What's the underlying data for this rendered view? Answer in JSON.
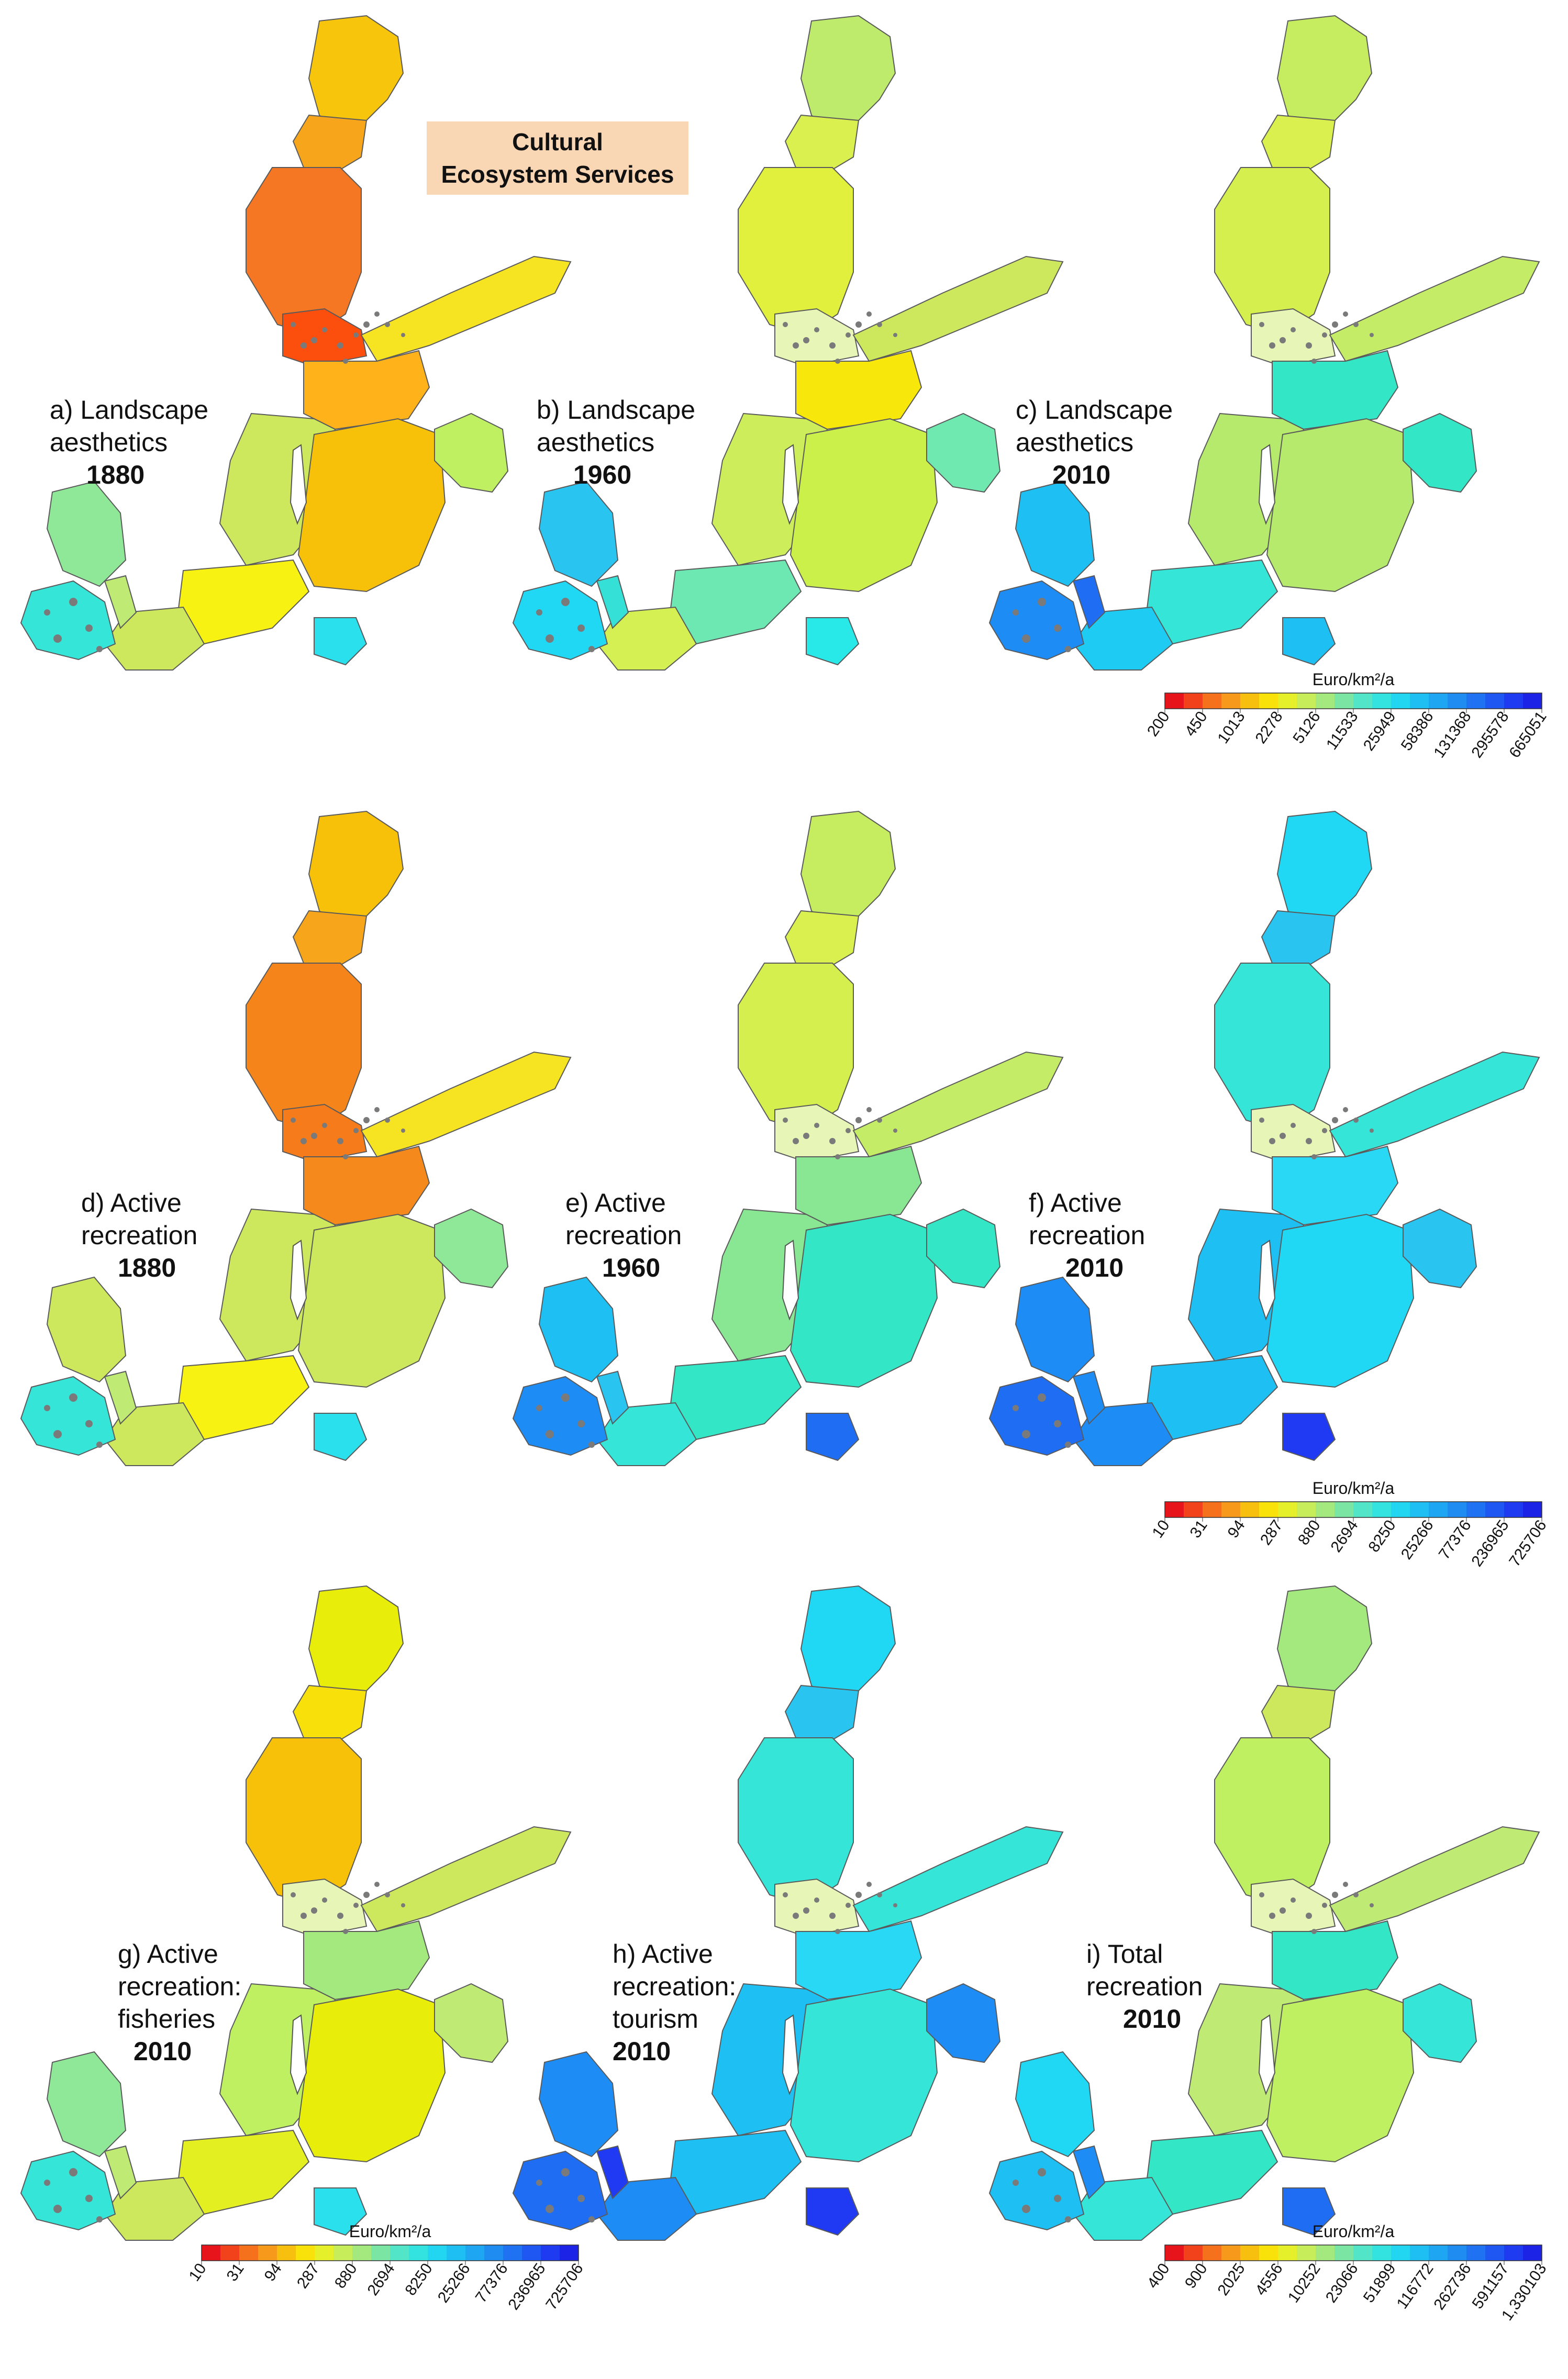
{
  "title": [
    "Cultural",
    "Ecosystem Services"
  ],
  "panels": [
    {
      "id": "a",
      "label": "a) Landscape\naesthetics",
      "year": "1880",
      "scale": "landscape",
      "colors": {
        "n1": "#f7c60c",
        "n2": "#f7a51b",
        "n3": "#f57723",
        "n4": "#f6e321",
        "n5": "#ffb21a",
        "n6": "#fc4e0c",
        "n7": "#f7c10a",
        "n8": "#f8f213",
        "n9": "#cde85c",
        "n10": "#35e6d8",
        "n11": "#8fe897",
        "n12": "#bfea74",
        "n13": "#bff062",
        "n14": "#cde85c",
        "n15": "#29e0ec"
      }
    },
    {
      "id": "b",
      "label": "b) Landscape\naesthetics",
      "year": "1960",
      "scale": "landscape",
      "colors": {
        "n1": "#bfeb6c",
        "n2": "#daf04e",
        "n3": "#e0f03d",
        "n4": "#cde85c",
        "n5": "#f8e70a",
        "n6": "#e7f5b7",
        "n7": "#cbf04a",
        "n8": "#6de8b3",
        "n9": "#cdee5a",
        "n10": "#20d8f4",
        "n11": "#29c4f0",
        "n12": "#35e0d6",
        "n13": "#6fe9b0",
        "n14": "#d4f053",
        "n15": "#28e8e8"
      }
    },
    {
      "id": "c",
      "label": "c) Landscape\naesthetics",
      "year": "2010",
      "scale": "landscape",
      "colors": {
        "n1": "#c6ec60",
        "n2": "#daf04e",
        "n3": "#d4ef4e",
        "n4": "#c5ec66",
        "n5": "#33e6c6",
        "n6": "#e7f5b7",
        "n7": "#b6ea6c",
        "n8": "#35e6d8",
        "n9": "#b6ea6c",
        "n10": "#1e8cf5",
        "n11": "#1ebff2",
        "n12": "#1f6df2",
        "n13": "#33e6c6",
        "n14": "#1ecbf2",
        "n15": "#1ebff2"
      }
    },
    {
      "id": "d",
      "label": "d) Active\nrecreation",
      "year": "1880",
      "scale": "recreation",
      "colors": {
        "n1": "#f7c10a",
        "n2": "#f7a51b",
        "n3": "#f5851b",
        "n4": "#f6e321",
        "n5": "#f5891b",
        "n6": "#f57b1b",
        "n7": "#cde85c",
        "n8": "#f8f213",
        "n9": "#cde85c",
        "n10": "#35e6d8",
        "n11": "#cde85c",
        "n12": "#bfea74",
        "n13": "#8fe897",
        "n14": "#cde85c",
        "n15": "#29e0ec"
      }
    },
    {
      "id": "e",
      "label": "e) Active\nrecreation",
      "year": "1960",
      "scale": "recreation",
      "colors": {
        "n1": "#c6ec60",
        "n2": "#daf04e",
        "n3": "#d4ef4e",
        "n4": "#c5ec66",
        "n5": "#89e693",
        "n6": "#e7f5b7",
        "n7": "#33e6c6",
        "n8": "#33e6c6",
        "n9": "#89e693",
        "n10": "#1e8cf5",
        "n11": "#1ebff2",
        "n12": "#29c4f0",
        "n13": "#33e6c6",
        "n14": "#35e6d8",
        "n15": "#1f6df2"
      }
    },
    {
      "id": "f",
      "label": "f) Active\nrecreation",
      "year": "2010",
      "scale": "recreation",
      "colors": {
        "n1": "#20d8f4",
        "n2": "#29c4f0",
        "n3": "#35e6d8",
        "n4": "#35e6d8",
        "n5": "#29d8f4",
        "n6": "#e7f5b7",
        "n7": "#20d8f4",
        "n8": "#1ebff2",
        "n9": "#1ebff2",
        "n10": "#1f6df2",
        "n11": "#1e8cf5",
        "n12": "#1e8cf5",
        "n13": "#29c4f0",
        "n14": "#1e8cf5",
        "n15": "#1f3af2"
      }
    },
    {
      "id": "g",
      "label": "g) Active\nrecreation:\nfisheries",
      "year": "2010",
      "scale": "recreation",
      "colors": {
        "n1": "#e8ee0a",
        "n2": "#f8e10a",
        "n3": "#f7c10a",
        "n4": "#cde85c",
        "n5": "#a4e97e",
        "n6": "#e7f5b7",
        "n7": "#e8ee0a",
        "n8": "#e4ef22",
        "n9": "#bff062",
        "n10": "#35e6d8",
        "n11": "#8fe897",
        "n12": "#bfea74",
        "n13": "#bfea74",
        "n14": "#cde85c",
        "n15": "#29e0ec"
      }
    },
    {
      "id": "h",
      "label": "h) Active\nrecreation:\ntourism",
      "year": "2010",
      "scale": "recreation",
      "colors": {
        "n1": "#20d8f4",
        "n2": "#29c4f0",
        "n3": "#35e6d8",
        "n4": "#35e6d8",
        "n5": "#29d8f4",
        "n6": "#e7f5b7",
        "n7": "#35e6d8",
        "n8": "#1ebff2",
        "n9": "#1ebff2",
        "n10": "#1f6df2",
        "n11": "#1e8cf5",
        "n12": "#1f3af2",
        "n13": "#1e8cf5",
        "n14": "#1e8cf5",
        "n15": "#1f3af2"
      }
    },
    {
      "id": "i",
      "label": "i) Total\nrecreation",
      "year": "2010",
      "scale": "total",
      "colors": {
        "n1": "#a4e97e",
        "n2": "#cde85c",
        "n3": "#bff062",
        "n4": "#bfea74",
        "n5": "#33e6c6",
        "n6": "#e7f5b7",
        "n7": "#bff062",
        "n8": "#33e6c6",
        "n9": "#bfea74",
        "n10": "#1ebff2",
        "n11": "#20d8f4",
        "n12": "#1e8cf5",
        "n13": "#35e6d8",
        "n14": "#35e6d8",
        "n15": "#1f6df2"
      }
    }
  ],
  "legends": [
    {
      "id": "landscape",
      "unit": "Euro/km²/a",
      "ticks": [
        "200",
        "450",
        "1013",
        "2278",
        "5126",
        "11533",
        "25949",
        "58386",
        "131368",
        "295578",
        "665051"
      ]
    },
    {
      "id": "recreation-top",
      "unit": "Euro/km²/a",
      "ticks": [
        "10",
        "31",
        "94",
        "287",
        "880",
        "2694",
        "8250",
        "25266",
        "77376",
        "236965",
        "725706"
      ]
    },
    {
      "id": "recreation-bottom",
      "unit": "Euro/km²/a",
      "ticks": [
        "10",
        "31",
        "94",
        "287",
        "880",
        "2694",
        "8250",
        "25266",
        "77376",
        "236965",
        "725706"
      ]
    },
    {
      "id": "total",
      "unit": "Euro/km²/a",
      "ticks": [
        "400",
        "900",
        "2025",
        "4556",
        "10252",
        "23066",
        "51899",
        "116772",
        "262736",
        "591157",
        "1,330103"
      ]
    }
  ],
  "colorscale": [
    "#e8141c",
    "#f2421c",
    "#f5711c",
    "#f79a1b",
    "#f8c00e",
    "#f8e20a",
    "#e6f02a",
    "#c8ed5a",
    "#a4e97e",
    "#7be6a4",
    "#52e5c8",
    "#33e3e0",
    "#22d6f2",
    "#1ebff2",
    "#1ea6f2",
    "#1f8cf2",
    "#1f72f2",
    "#1f57f2",
    "#1f3bf2",
    "#1c22e6"
  ]
}
